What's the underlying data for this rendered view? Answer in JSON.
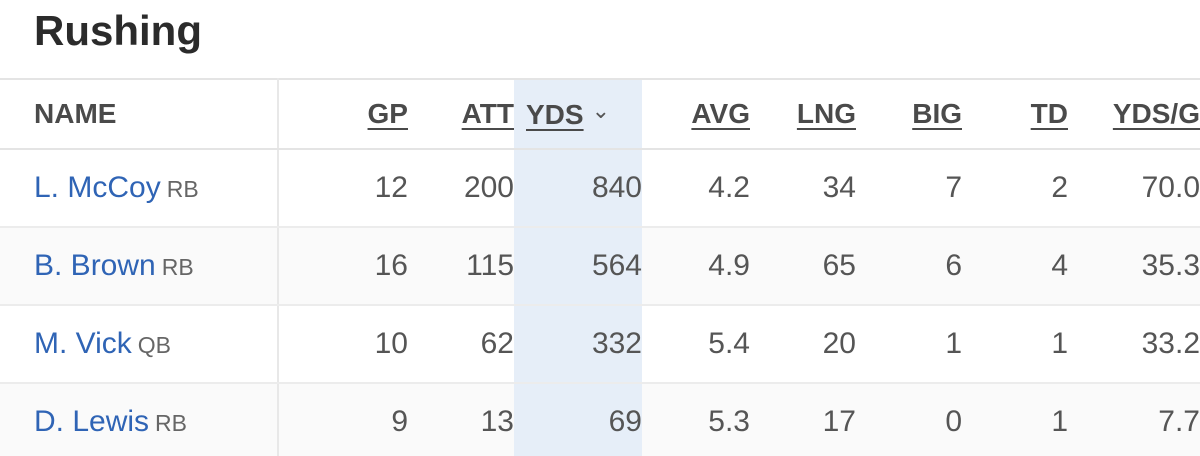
{
  "title": "Rushing",
  "columns": {
    "name": "NAME",
    "gp": "GP",
    "att": "ATT",
    "yds": "YDS",
    "avg": "AVG",
    "lng": "LNG",
    "big": "BIG",
    "td": "TD",
    "ydsg": "YDS/G"
  },
  "sort": {
    "column": "yds",
    "icon": "chevron-down-icon"
  },
  "rows": [
    {
      "name": "L. McCoy",
      "pos": "RB",
      "gp": "12",
      "att": "200",
      "yds": "840",
      "avg": "4.2",
      "lng": "34",
      "big": "7",
      "td": "2",
      "ydsg": "70.0"
    },
    {
      "name": "B. Brown",
      "pos": "RB",
      "gp": "16",
      "att": "115",
      "yds": "564",
      "avg": "4.9",
      "lng": "65",
      "big": "6",
      "td": "4",
      "ydsg": "35.3"
    },
    {
      "name": "M. Vick",
      "pos": "QB",
      "gp": "10",
      "att": "62",
      "yds": "332",
      "avg": "5.4",
      "lng": "20",
      "big": "1",
      "td": "1",
      "ydsg": "33.2"
    },
    {
      "name": "D. Lewis",
      "pos": "RB",
      "gp": "9",
      "att": "13",
      "yds": "69",
      "avg": "5.3",
      "lng": "17",
      "big": "0",
      "td": "1",
      "ydsg": "7.7"
    }
  ],
  "colors": {
    "link": "#2f64b5",
    "sorted_column_bg": "#e6eef8"
  }
}
